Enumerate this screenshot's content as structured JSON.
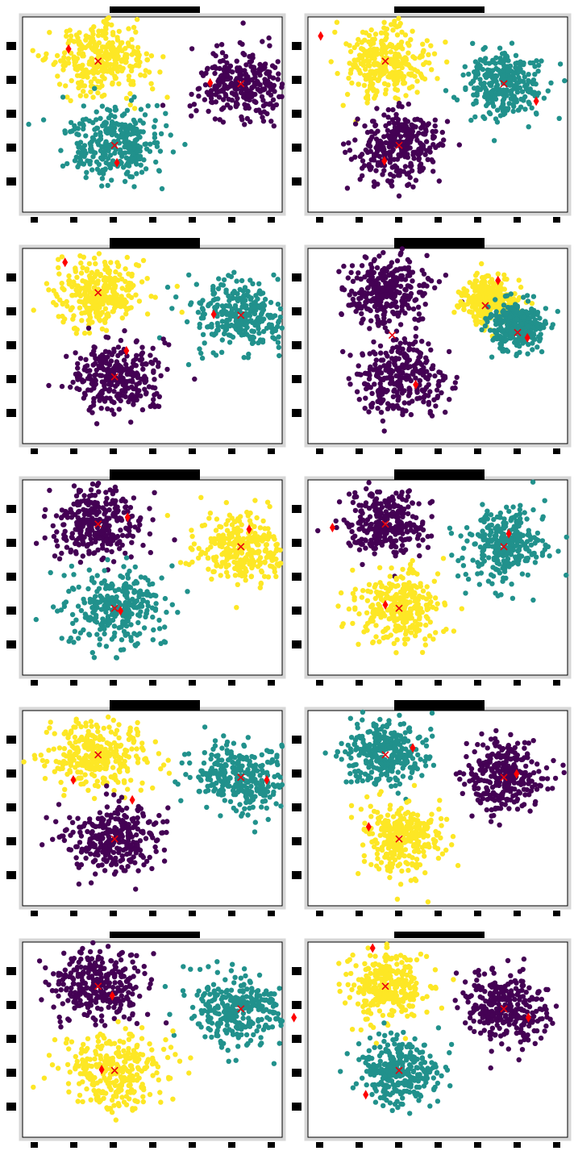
{
  "figure": {
    "rows": 5,
    "cols": 2,
    "marker_colors": {
      "cluster_0": "#440154",
      "cluster_1": "#21918c",
      "cluster_2": "#fde725",
      "centroid": "#e8000b",
      "initial_center": "#ff0000"
    },
    "titles_legible": false
  },
  "chart_data": [
    {
      "type": "scatter",
      "panel": 1,
      "title": "",
      "xlabel": "",
      "ylabel": "",
      "xlim": [
        -11,
        11
      ],
      "ylim": [
        -11.5,
        11
      ],
      "grid": false,
      "blobs": [
        {
          "cluster": 2,
          "center": [
            -4.6,
            5.9
          ],
          "spread": 2.0
        },
        {
          "cluster": 0,
          "center": [
            7.5,
            3.3
          ],
          "spread": 2.0
        },
        {
          "cluster": 1,
          "center": [
            -3.2,
            -3.8
          ],
          "spread": 2.1
        }
      ],
      "centroids": [
        [
          -4.6,
          5.9
        ],
        [
          7.5,
          3.3
        ],
        [
          -3.2,
          -3.8
        ]
      ],
      "initial_centers": [
        [
          -7.1,
          7.3
        ],
        [
          4.9,
          3.4
        ],
        [
          -3.0,
          -5.8
        ]
      ]
    },
    {
      "type": "scatter",
      "panel": 2,
      "title": "",
      "xlabel": "",
      "ylabel": "",
      "xlim": [
        -12.5,
        14
      ],
      "ylim": [
        -11.5,
        11
      ],
      "grid": false,
      "blobs": [
        {
          "cluster": 2,
          "center": [
            -4.6,
            5.9
          ],
          "spread": 2.0
        },
        {
          "cluster": 1,
          "center": [
            7.5,
            3.3
          ],
          "spread": 2.0
        },
        {
          "cluster": 0,
          "center": [
            -3.2,
            -3.8
          ],
          "spread": 2.1
        }
      ],
      "centroids": [
        [
          -4.6,
          5.9
        ],
        [
          7.5,
          3.3
        ],
        [
          -3.2,
          -3.8
        ]
      ],
      "initial_centers": [
        [
          -11.2,
          8.8
        ],
        [
          10.8,
          1.3
        ],
        [
          -4.7,
          -5.6
        ]
      ]
    },
    {
      "type": "scatter",
      "panel": 3,
      "title": "",
      "xlabel": "",
      "ylabel": "",
      "xlim": [
        -11,
        11
      ],
      "ylim": [
        -11.5,
        11
      ],
      "grid": false,
      "blobs": [
        {
          "cluster": 2,
          "center": [
            -4.6,
            5.9
          ],
          "spread": 2.0
        },
        {
          "cluster": 1,
          "center": [
            7.5,
            3.3
          ],
          "spread": 2.0
        },
        {
          "cluster": 0,
          "center": [
            -3.2,
            -3.8
          ],
          "spread": 2.1
        }
      ],
      "centroids": [
        [
          -4.6,
          5.9
        ],
        [
          7.5,
          3.3
        ],
        [
          -3.2,
          -3.8
        ]
      ],
      "initial_centers": [
        [
          -7.4,
          9.4
        ],
        [
          5.2,
          3.4
        ],
        [
          -2.2,
          -0.8
        ]
      ]
    },
    {
      "type": "scatter",
      "panel": 4,
      "title": "",
      "xlabel": "",
      "ylabel": "",
      "xlim": [
        -12.5,
        14
      ],
      "ylim": [
        -11.5,
        11
      ],
      "grid": false,
      "blobs": [
        {
          "cluster": 0,
          "center": [
            -4.6,
            5.9
          ],
          "spread": 2.0
        },
        {
          "cluster": 0,
          "center": [
            -3.2,
            -3.8
          ],
          "spread": 2.1
        },
        {
          "cluster": 2,
          "center": [
            6.0,
            4.9
          ],
          "spread": 1.4
        },
        {
          "cluster": 1,
          "center": [
            8.8,
            2.0
          ],
          "spread": 1.4
        }
      ],
      "centroids": [
        [
          -3.9,
          1.0
        ],
        [
          5.6,
          4.4
        ],
        [
          8.9,
          1.3
        ]
      ],
      "initial_centers": [
        [
          6.9,
          7.3
        ],
        [
          9.9,
          0.7
        ],
        [
          -1.5,
          -4.7
        ]
      ]
    },
    {
      "type": "scatter",
      "panel": 5,
      "title": "",
      "xlabel": "",
      "ylabel": "",
      "xlim": [
        -11,
        11
      ],
      "ylim": [
        -11.5,
        11
      ],
      "grid": false,
      "blobs": [
        {
          "cluster": 0,
          "center": [
            -4.6,
            5.9
          ],
          "spread": 2.0
        },
        {
          "cluster": 2,
          "center": [
            7.5,
            3.3
          ],
          "spread": 2.0
        },
        {
          "cluster": 1,
          "center": [
            -3.2,
            -3.8
          ],
          "spread": 2.1
        }
      ],
      "centroids": [
        [
          -4.6,
          5.9
        ],
        [
          7.5,
          3.3
        ],
        [
          -3.2,
          -3.8
        ]
      ],
      "initial_centers": [
        [
          -2.1,
          6.7
        ],
        [
          8.2,
          5.3
        ],
        [
          -2.7,
          -4.1
        ]
      ]
    },
    {
      "type": "scatter",
      "panel": 6,
      "title": "",
      "xlabel": "",
      "ylabel": "",
      "xlim": [
        -12.5,
        14
      ],
      "ylim": [
        -11.5,
        11
      ],
      "grid": false,
      "blobs": [
        {
          "cluster": 0,
          "center": [
            -4.6,
            5.9
          ],
          "spread": 2.0
        },
        {
          "cluster": 1,
          "center": [
            7.5,
            3.3
          ],
          "spread": 2.0
        },
        {
          "cluster": 2,
          "center": [
            -3.2,
            -3.8
          ],
          "spread": 2.1
        }
      ],
      "centroids": [
        [
          -4.6,
          5.9
        ],
        [
          7.5,
          3.3
        ],
        [
          -3.2,
          -3.8
        ]
      ],
      "initial_centers": [
        [
          -10.0,
          5.5
        ],
        [
          8.0,
          4.8
        ],
        [
          -4.6,
          -3.4
        ]
      ]
    },
    {
      "type": "scatter",
      "panel": 7,
      "title": "",
      "xlabel": "",
      "ylabel": "",
      "xlim": [
        -11,
        11
      ],
      "ylim": [
        -11.5,
        11
      ],
      "grid": false,
      "blobs": [
        {
          "cluster": 2,
          "center": [
            -4.6,
            5.9
          ],
          "spread": 2.0
        },
        {
          "cluster": 1,
          "center": [
            7.5,
            3.3
          ],
          "spread": 2.0
        },
        {
          "cluster": 0,
          "center": [
            -3.2,
            -3.8
          ],
          "spread": 2.1
        }
      ],
      "centroids": [
        [
          -4.6,
          5.9
        ],
        [
          7.5,
          3.3
        ],
        [
          -3.2,
          -3.8
        ]
      ],
      "initial_centers": [
        [
          -6.7,
          3.0
        ],
        [
          9.7,
          3.0
        ],
        [
          -1.7,
          0.7
        ]
      ]
    },
    {
      "type": "scatter",
      "panel": 8,
      "title": "",
      "xlabel": "",
      "ylabel": "",
      "xlim": [
        -12.5,
        14
      ],
      "ylim": [
        -11.5,
        11
      ],
      "grid": false,
      "blobs": [
        {
          "cluster": 1,
          "center": [
            -4.6,
            5.9
          ],
          "spread": 2.0
        },
        {
          "cluster": 0,
          "center": [
            7.5,
            3.3
          ],
          "spread": 2.0
        },
        {
          "cluster": 2,
          "center": [
            -3.2,
            -3.8
          ],
          "spread": 2.1
        }
      ],
      "centroids": [
        [
          -4.6,
          5.9
        ],
        [
          7.5,
          3.3
        ],
        [
          -3.2,
          -3.8
        ]
      ],
      "initial_centers": [
        [
          -1.8,
          6.7
        ],
        [
          8.8,
          3.7
        ],
        [
          -6.3,
          -2.4
        ]
      ]
    },
    {
      "type": "scatter",
      "panel": 9,
      "title": "",
      "xlabel": "",
      "ylabel": "",
      "xlim": [
        -11,
        11
      ],
      "ylim": [
        -11.5,
        11
      ],
      "grid": false,
      "blobs": [
        {
          "cluster": 0,
          "center": [
            -4.6,
            5.9
          ],
          "spread": 2.0
        },
        {
          "cluster": 1,
          "center": [
            7.5,
            3.3
          ],
          "spread": 2.0
        },
        {
          "cluster": 2,
          "center": [
            -3.2,
            -3.8
          ],
          "spread": 2.1
        }
      ],
      "centroids": [
        [
          -4.6,
          5.9
        ],
        [
          7.5,
          3.3
        ],
        [
          -3.2,
          -3.8
        ]
      ],
      "initial_centers": [
        [
          -3.4,
          4.8
        ],
        [
          12.0,
          2.3
        ],
        [
          -4.3,
          -3.7
        ]
      ]
    },
    {
      "type": "scatter",
      "panel": 10,
      "title": "",
      "xlabel": "",
      "ylabel": "",
      "xlim": [
        -12.5,
        14
      ],
      "ylim": [
        -11.5,
        11
      ],
      "grid": false,
      "blobs": [
        {
          "cluster": 2,
          "center": [
            -4.6,
            5.9
          ],
          "spread": 2.0
        },
        {
          "cluster": 0,
          "center": [
            7.5,
            3.3
          ],
          "spread": 2.0
        },
        {
          "cluster": 1,
          "center": [
            -3.2,
            -3.8
          ],
          "spread": 2.1
        }
      ],
      "centroids": [
        [
          -4.6,
          5.9
        ],
        [
          7.5,
          3.3
        ],
        [
          -3.2,
          -3.8
        ]
      ],
      "initial_centers": [
        [
          -5.9,
          10.3
        ],
        [
          10.0,
          2.3
        ],
        [
          -6.6,
          -6.6
        ]
      ]
    }
  ]
}
